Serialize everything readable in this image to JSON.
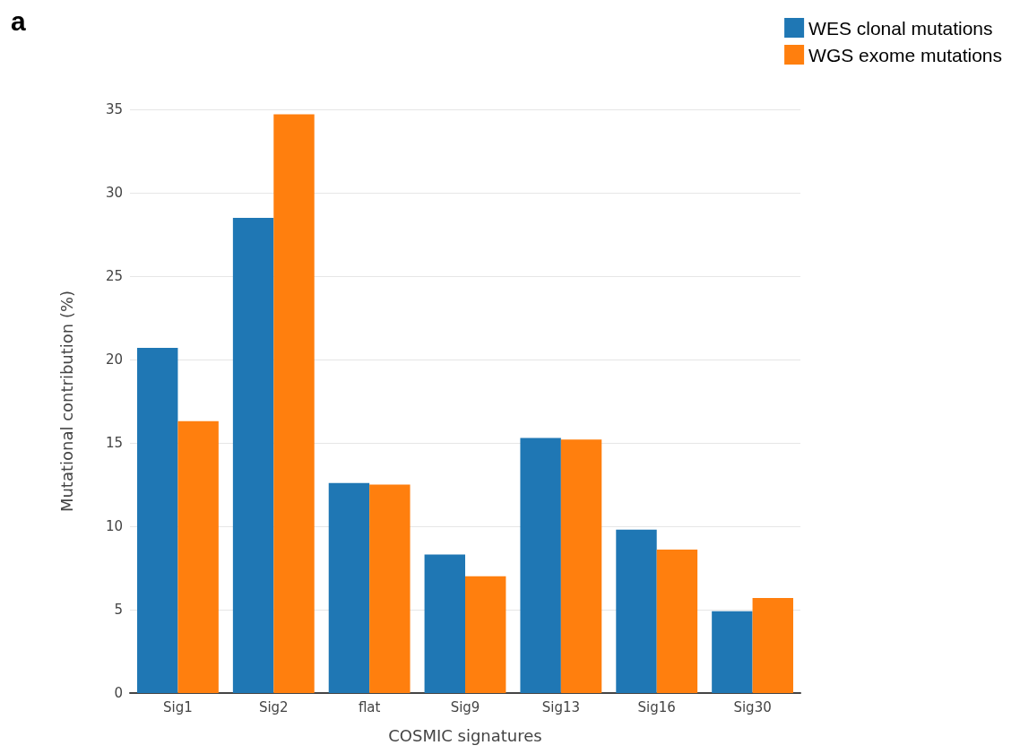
{
  "chart_data": {
    "type": "bar",
    "xlabel": "COSMIC signatures",
    "ylabel": "Mutational contribution (%)",
    "annotations": [
      "a"
    ],
    "categories": [
      "Sig1",
      "Sig2",
      "flat",
      "Sig9",
      "Sig13",
      "Sig16",
      "Sig30"
    ],
    "series": [
      {
        "name": "WES clonal mutations",
        "color": "#1f77b4",
        "values": [
          20.7,
          28.5,
          12.6,
          8.3,
          15.3,
          9.8,
          4.9
        ]
      },
      {
        "name": "WGS exome mutations",
        "color": "#ff7f0e",
        "values": [
          16.3,
          34.7,
          12.5,
          7.0,
          15.2,
          8.6,
          5.7
        ]
      }
    ],
    "ylim": [
      0,
      35
    ],
    "yticks": [
      0,
      5,
      10,
      15,
      20,
      25,
      30,
      35
    ],
    "grid": "y",
    "legend": "top right"
  }
}
